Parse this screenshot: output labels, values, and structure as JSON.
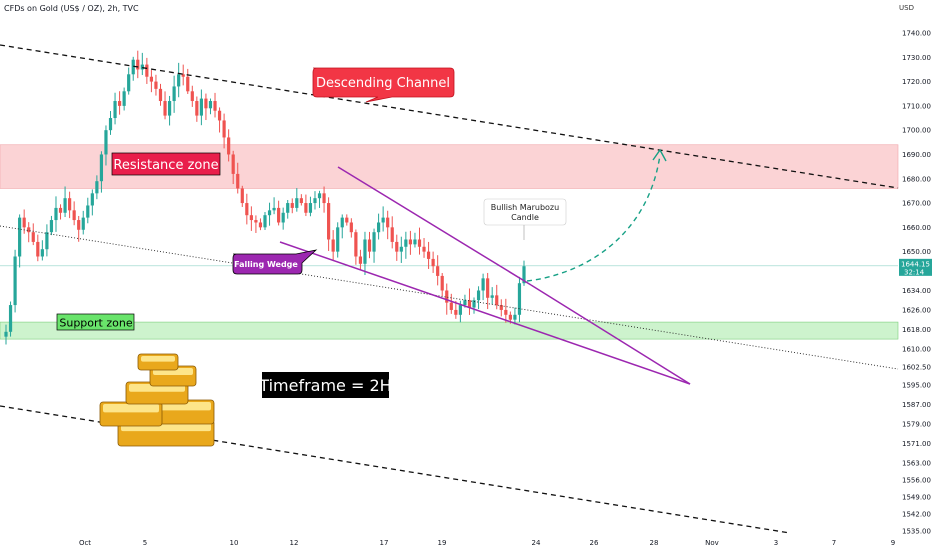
{
  "header": {
    "title": "CFDs on Gold (US$ / OZ), 2h, TVC",
    "currency": "USD"
  },
  "chart_data": {
    "type": "candlestick",
    "title": "CFDs on Gold (US$ / OZ), 2h, TVC",
    "ylim": [
      1532,
      1747
    ],
    "y_ticks": [
      "1740.00",
      "1730.00",
      "1720.00",
      "1710.00",
      "1700.00",
      "1690.00",
      "1680.00",
      "1670.00",
      "1660.00",
      "1650.00",
      "1634.00",
      "1626.00",
      "1618.00",
      "1610.00",
      "1602.50",
      "1595.00",
      "1587.00",
      "1579.00",
      "1571.00",
      "1563.00",
      "1556.00",
      "1549.00",
      "1542.00",
      "1535.00"
    ],
    "x_ticks": [
      "Oct",
      "5",
      "10",
      "12",
      "17",
      "19",
      "24",
      "26",
      "28",
      "Nov",
      "3",
      "7",
      "9"
    ],
    "current_price": {
      "value": 1644.15,
      "label": "1644.15",
      "countdown": "32:14"
    },
    "annotations": {
      "descending_channel": "Descending Channel",
      "resistance_zone": "Resistance zone",
      "support_zone": "Support zone",
      "falling_wedge": "Falling Wedge",
      "bullish_candle_line1": "Bullish Marubozu",
      "bullish_candle_line2": "Candle",
      "timeframe": "Timeframe = 2H"
    },
    "zones": {
      "resistance": [
        1676,
        1694
      ],
      "support": [
        1614,
        1621
      ]
    },
    "series": [
      {
        "values": [
          1617,
          1628,
          1648,
          1664,
          1660,
          1658,
          1654,
          1648,
          1651,
          1658,
          1663,
          1668,
          1666,
          1672,
          1667,
          1663,
          1659,
          1664,
          1669,
          1674,
          1679,
          1690,
          1700,
          1705,
          1712,
          1710,
          1716,
          1723,
          1729,
          1725,
          1727,
          1722,
          1720,
          1717,
          1712,
          1706,
          1712,
          1718,
          1723,
          1722,
          1716,
          1712,
          1706,
          1713,
          1709,
          1712,
          1708,
          1704,
          1697,
          1690,
          1682,
          1676,
          1670,
          1665,
          1663,
          1662,
          1660,
          1665,
          1667,
          1668,
          1662,
          1666,
          1670,
          1668,
          1672,
          1670,
          1666,
          1670,
          1672,
          1674,
          1670,
          1655,
          1650,
          1660,
          1664,
          1662,
          1658,
          1648,
          1645,
          1655,
          1650,
          1658,
          1662,
          1664,
          1660,
          1654,
          1650,
          1652,
          1655,
          1653,
          1655,
          1652,
          1650,
          1647,
          1644,
          1640,
          1634,
          1629,
          1626,
          1624,
          1628,
          1630,
          1627,
          1630,
          1634,
          1639,
          1631,
          1632,
          1628,
          1626,
          1624,
          1622,
          1624,
          1637,
          1644
        ]
      }
    ]
  }
}
